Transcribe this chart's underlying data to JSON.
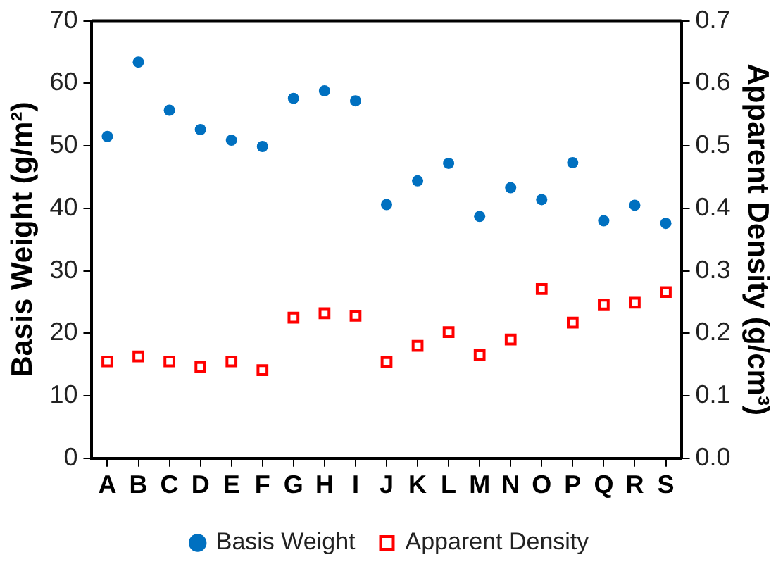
{
  "chart_data": {
    "type": "scatter",
    "ylabel": "Basis Weight (g/m²)",
    "y2label": "Apparent Density (g/cm³)",
    "categories": [
      "A",
      "B",
      "C",
      "D",
      "E",
      "F",
      "G",
      "H",
      "I",
      "J",
      "K",
      "L",
      "M",
      "N",
      "O",
      "P",
      "Q",
      "R",
      "S"
    ],
    "series": [
      {
        "name": "Basis Weight",
        "color": "#0070c0",
        "marker": "circle",
        "values": [
          51.5,
          63.4,
          55.7,
          52.6,
          50.9,
          49.9,
          57.6,
          58.8,
          57.2,
          40.6,
          44.4,
          47.2,
          38.7,
          43.3,
          41.4,
          47.3,
          38.0,
          40.5,
          37.6
        ]
      },
      {
        "name": "Apparent Density",
        "color": "#ff0000",
        "marker": "square",
        "axis": "y2",
        "values": [
          0.155,
          0.163,
          0.155,
          0.146,
          0.155,
          0.141,
          0.225,
          0.232,
          0.228,
          0.154,
          0.18,
          0.202,
          0.165,
          0.19,
          0.271,
          0.217,
          0.246,
          0.249,
          0.266
        ]
      }
    ],
    "ylim": [
      0,
      70
    ],
    "yticks": [
      0,
      10,
      20,
      30,
      40,
      50,
      60,
      70
    ],
    "y2lim": [
      0,
      0.7
    ],
    "y2ticks": [
      {
        "value": 0,
        "label": "0.0"
      },
      0.1,
      0.2,
      0.3,
      0.4,
      0.5,
      0.6,
      0.7
    ],
    "grid": false,
    "legend": "bottom"
  }
}
